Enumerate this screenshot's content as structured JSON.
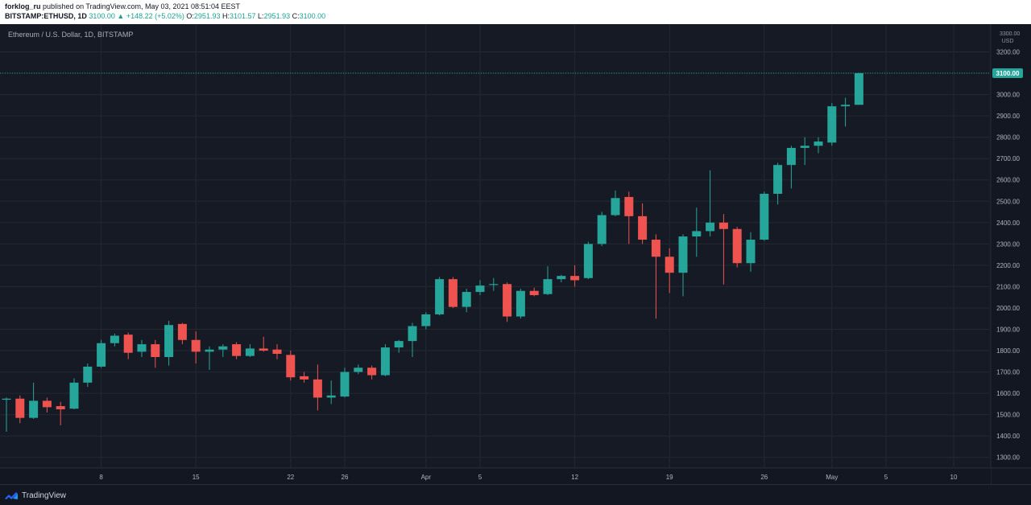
{
  "header": {
    "user": "forklog_ru",
    "published": "published on TradingView.com, May 03, 2021 08:51:04 EEST",
    "symbol": "BITSTAMP:ETHUSD, 1D",
    "price": "3100.00",
    "change": "▲ +148.22 (+5.02%)",
    "o_label": "O:",
    "o_value": "2951.93",
    "h_label": "H:",
    "h_value": "3101.57",
    "l_label": "L:",
    "l_value": "2951.93",
    "c_label": "C:",
    "c_value": "3100.00"
  },
  "chart_title": "Ethereum / U.S. Dollar, 1D, BITSTAMP",
  "axis_top_label": "3300.00",
  "currency": "USD",
  "last_price_label": "3100.00",
  "footer": {
    "brand": "TradingView",
    "logo_icon": "tradingview-logo-icon"
  },
  "chart_data": {
    "type": "candlestick",
    "title": "Ethereum / U.S. Dollar, 1D, BITSTAMP",
    "y_range": [
      1250,
      3330
    ],
    "y_ticks": [
      1300,
      1400,
      1500,
      1600,
      1700,
      1800,
      1900,
      2000,
      2100,
      2200,
      2300,
      2400,
      2500,
      2600,
      2700,
      2800,
      2900,
      3000,
      3100,
      3200
    ],
    "x_tick_labels": [
      {
        "label": "8",
        "day": 7
      },
      {
        "label": "15",
        "day": 14
      },
      {
        "label": "22",
        "day": 21
      },
      {
        "label": "26",
        "day": 25
      },
      {
        "label": "Apr",
        "day": 31
      },
      {
        "label": "5",
        "day": 35
      },
      {
        "label": "12",
        "day": 42
      },
      {
        "label": "19",
        "day": 49
      },
      {
        "label": "26",
        "day": 56
      },
      {
        "label": "May",
        "day": 61
      },
      {
        "label": "5",
        "day": 65
      },
      {
        "label": "10",
        "day": 70
      }
    ],
    "colors": {
      "up": "#26a69a",
      "down": "#ef5350",
      "grid": "#242833",
      "background": "#161a25"
    },
    "last_price": 3100,
    "candles": [
      {
        "o": 1570,
        "h": 1580,
        "l": 1420,
        "c": 1575
      },
      {
        "o": 1575,
        "h": 1590,
        "l": 1460,
        "c": 1485
      },
      {
        "o": 1485,
        "h": 1650,
        "l": 1480,
        "c": 1565
      },
      {
        "o": 1565,
        "h": 1580,
        "l": 1510,
        "c": 1535
      },
      {
        "o": 1540,
        "h": 1560,
        "l": 1450,
        "c": 1525
      },
      {
        "o": 1528,
        "h": 1670,
        "l": 1525,
        "c": 1650
      },
      {
        "o": 1650,
        "h": 1740,
        "l": 1630,
        "c": 1725
      },
      {
        "o": 1725,
        "h": 1850,
        "l": 1720,
        "c": 1835
      },
      {
        "o": 1835,
        "h": 1880,
        "l": 1820,
        "c": 1870
      },
      {
        "o": 1875,
        "h": 1885,
        "l": 1760,
        "c": 1790
      },
      {
        "o": 1795,
        "h": 1850,
        "l": 1770,
        "c": 1830
      },
      {
        "o": 1830,
        "h": 1850,
        "l": 1720,
        "c": 1770
      },
      {
        "o": 1770,
        "h": 1940,
        "l": 1730,
        "c": 1920
      },
      {
        "o": 1925,
        "h": 1930,
        "l": 1830,
        "c": 1850
      },
      {
        "o": 1850,
        "h": 1890,
        "l": 1740,
        "c": 1795
      },
      {
        "o": 1795,
        "h": 1820,
        "l": 1710,
        "c": 1805
      },
      {
        "o": 1805,
        "h": 1830,
        "l": 1770,
        "c": 1820
      },
      {
        "o": 1830,
        "h": 1840,
        "l": 1760,
        "c": 1775
      },
      {
        "o": 1775,
        "h": 1830,
        "l": 1770,
        "c": 1810
      },
      {
        "o": 1810,
        "h": 1865,
        "l": 1795,
        "c": 1800
      },
      {
        "o": 1805,
        "h": 1830,
        "l": 1760,
        "c": 1785
      },
      {
        "o": 1780,
        "h": 1800,
        "l": 1660,
        "c": 1675
      },
      {
        "o": 1680,
        "h": 1700,
        "l": 1650,
        "c": 1665
      },
      {
        "o": 1665,
        "h": 1735,
        "l": 1520,
        "c": 1580
      },
      {
        "o": 1580,
        "h": 1660,
        "l": 1550,
        "c": 1590
      },
      {
        "o": 1585,
        "h": 1720,
        "l": 1580,
        "c": 1700
      },
      {
        "o": 1700,
        "h": 1735,
        "l": 1690,
        "c": 1720
      },
      {
        "o": 1720,
        "h": 1730,
        "l": 1665,
        "c": 1685
      },
      {
        "o": 1685,
        "h": 1830,
        "l": 1680,
        "c": 1815
      },
      {
        "o": 1815,
        "h": 1850,
        "l": 1790,
        "c": 1845
      },
      {
        "o": 1845,
        "h": 1930,
        "l": 1770,
        "c": 1915
      },
      {
        "o": 1915,
        "h": 1980,
        "l": 1900,
        "c": 1970
      },
      {
        "o": 1970,
        "h": 2145,
        "l": 1965,
        "c": 2135
      },
      {
        "o": 2135,
        "h": 2145,
        "l": 2000,
        "c": 2005
      },
      {
        "o": 2005,
        "h": 2090,
        "l": 1980,
        "c": 2075
      },
      {
        "o": 2075,
        "h": 2130,
        "l": 2060,
        "c": 2105
      },
      {
        "o": 2108,
        "h": 2140,
        "l": 2080,
        "c": 2112
      },
      {
        "o": 2112,
        "h": 2120,
        "l": 1935,
        "c": 1960
      },
      {
        "o": 1960,
        "h": 2090,
        "l": 1950,
        "c": 2080
      },
      {
        "o": 2080,
        "h": 2095,
        "l": 2055,
        "c": 2060
      },
      {
        "o": 2065,
        "h": 2195,
        "l": 2060,
        "c": 2135
      },
      {
        "o": 2135,
        "h": 2155,
        "l": 2120,
        "c": 2150
      },
      {
        "o": 2150,
        "h": 2200,
        "l": 2100,
        "c": 2130
      },
      {
        "o": 2140,
        "h": 2310,
        "l": 2135,
        "c": 2300
      },
      {
        "o": 2300,
        "h": 2450,
        "l": 2290,
        "c": 2435
      },
      {
        "o": 2435,
        "h": 2550,
        "l": 2430,
        "c": 2515
      },
      {
        "o": 2520,
        "h": 2545,
        "l": 2300,
        "c": 2430
      },
      {
        "o": 2430,
        "h": 2490,
        "l": 2300,
        "c": 2320
      },
      {
        "o": 2320,
        "h": 2345,
        "l": 1950,
        "c": 2240
      },
      {
        "o": 2240,
        "h": 2280,
        "l": 2070,
        "c": 2165
      },
      {
        "o": 2165,
        "h": 2345,
        "l": 2055,
        "c": 2335
      },
      {
        "o": 2335,
        "h": 2470,
        "l": 2240,
        "c": 2360
      },
      {
        "o": 2360,
        "h": 2645,
        "l": 2335,
        "c": 2400
      },
      {
        "o": 2400,
        "h": 2440,
        "l": 2110,
        "c": 2370
      },
      {
        "o": 2370,
        "h": 2380,
        "l": 2190,
        "c": 2210
      },
      {
        "o": 2210,
        "h": 2355,
        "l": 2170,
        "c": 2320
      },
      {
        "o": 2320,
        "h": 2545,
        "l": 2315,
        "c": 2535
      },
      {
        "o": 2535,
        "h": 2680,
        "l": 2485,
        "c": 2670
      },
      {
        "o": 2670,
        "h": 2760,
        "l": 2560,
        "c": 2750
      },
      {
        "o": 2750,
        "h": 2800,
        "l": 2670,
        "c": 2760
      },
      {
        "o": 2760,
        "h": 2800,
        "l": 2725,
        "c": 2780
      },
      {
        "o": 2775,
        "h": 2960,
        "l": 2760,
        "c": 2945
      },
      {
        "o": 2945,
        "h": 2985,
        "l": 2850,
        "c": 2952
      },
      {
        "o": 2952,
        "h": 3102,
        "l": 2952,
        "c": 3100
      }
    ]
  }
}
